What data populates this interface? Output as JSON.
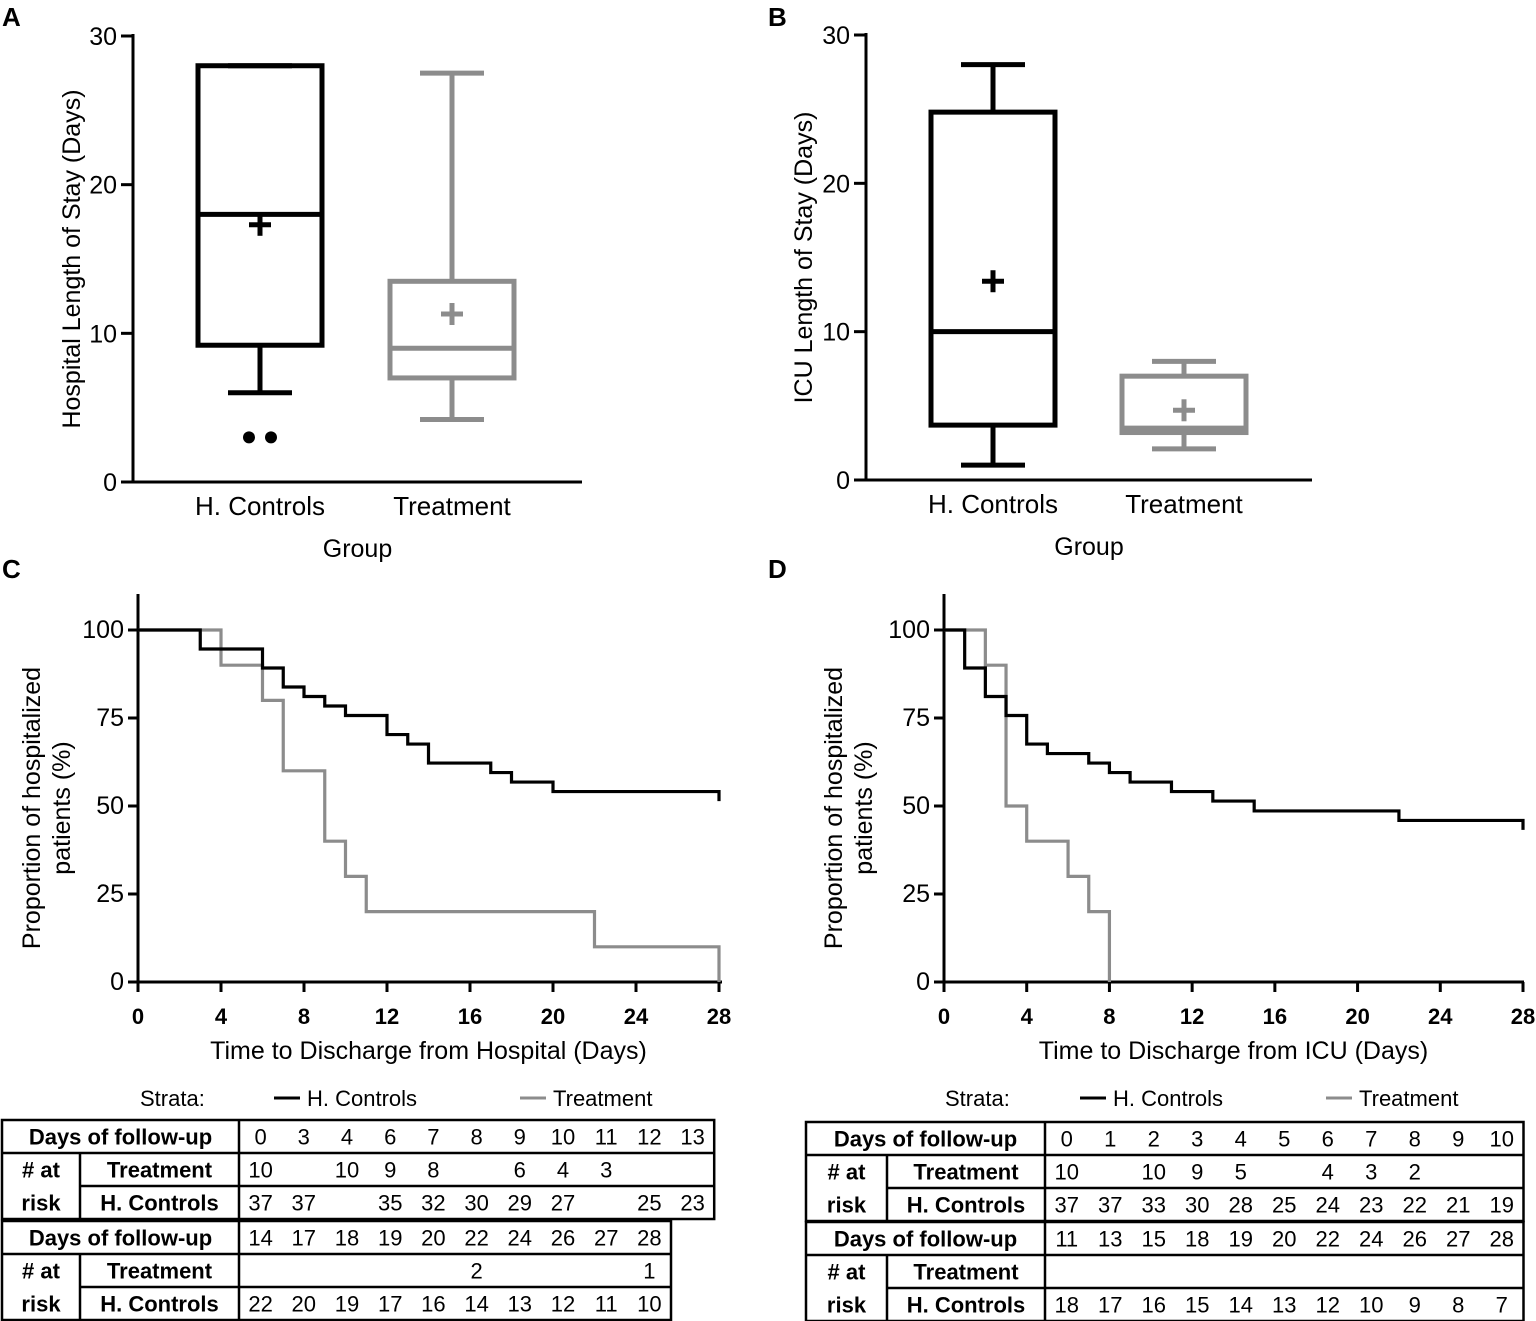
{
  "colors": {
    "controls": "#000000",
    "treatment": "#8c8c8c"
  },
  "chart_data": [
    {
      "panel": "A",
      "type": "box",
      "xlabel": "Group",
      "ylabel": "Hospital Length of Stay (Days)",
      "ylim": [
        0,
        30
      ],
      "yticks": [
        0,
        10,
        20,
        30
      ],
      "categories": [
        "H. Controls",
        "Treatment"
      ],
      "boxes": [
        {
          "name": "H. Controls",
          "whisker_low": 6,
          "q1": 9.2,
          "median": 18,
          "q3": 28,
          "whisker_high": 28,
          "mean": 17.3,
          "outliers": [
            3,
            3
          ]
        },
        {
          "name": "Treatment",
          "whisker_low": 4.2,
          "q1": 7,
          "median": 9,
          "q3": 13.5,
          "whisker_high": 27.5,
          "mean": 11.3,
          "outliers": []
        }
      ]
    },
    {
      "panel": "B",
      "type": "box",
      "xlabel": "Group",
      "ylabel": "ICU Length of Stay (Days)",
      "ylim": [
        0,
        30
      ],
      "yticks": [
        0,
        10,
        20,
        30
      ],
      "categories": [
        "H. Controls",
        "Treatment"
      ],
      "boxes": [
        {
          "name": "H. Controls",
          "whisker_low": 1,
          "q1": 3.7,
          "median": 10,
          "q3": 24.8,
          "whisker_high": 28,
          "mean": 13.4,
          "outliers": []
        },
        {
          "name": "Treatment",
          "whisker_low": 2.1,
          "q1": 3.2,
          "median": 3.5,
          "q3": 7,
          "whisker_high": 8,
          "mean": 4.7,
          "outliers": []
        }
      ]
    },
    {
      "panel": "C",
      "type": "line",
      "subtype": "step",
      "xlabel": "Time to Discharge from Hospital (Days)",
      "ylabel": "Proportion of hospitalized patients (%)",
      "ylabel_lines": [
        "Proportion of hospitalized",
        "patients (%)"
      ],
      "xlim": [
        0,
        28
      ],
      "ylim": [
        0,
        100
      ],
      "xticks": [
        0,
        4,
        8,
        12,
        16,
        20,
        24,
        28
      ],
      "yticks": [
        0,
        25,
        50,
        75,
        100
      ],
      "series": [
        {
          "name": "H. Controls",
          "x": [
            0,
            3,
            6,
            7,
            8,
            9,
            10,
            12,
            13,
            14,
            17,
            18,
            20,
            28
          ],
          "y": [
            100,
            94.6,
            89.2,
            83.8,
            81.1,
            78.4,
            75.7,
            70.3,
            67.6,
            62.2,
            59.5,
            56.8,
            54.1,
            51.4
          ]
        },
        {
          "name": "Treatment",
          "x": [
            0,
            4,
            6,
            7,
            9,
            10,
            11,
            22,
            28
          ],
          "y": [
            100,
            90,
            80,
            60,
            40,
            30,
            20,
            10,
            0
          ]
        }
      ]
    },
    {
      "panel": "D",
      "type": "line",
      "subtype": "step",
      "xlabel": "Time to Discharge from ICU (Days)",
      "ylabel": "Proportion of hospitalized patients (%)",
      "ylabel_lines": [
        "Proportion of hospitalized",
        "patients (%)"
      ],
      "xlim": [
        0,
        28
      ],
      "ylim": [
        0,
        100
      ],
      "xticks": [
        0,
        4,
        8,
        12,
        16,
        20,
        24,
        28
      ],
      "yticks": [
        0,
        25,
        50,
        75,
        100
      ],
      "series": [
        {
          "name": "H. Controls",
          "x": [
            0,
            1,
            2,
            3,
            4,
            5,
            7,
            8,
            9,
            11,
            13,
            15,
            22,
            28
          ],
          "y": [
            100,
            89.2,
            81.1,
            75.7,
            67.6,
            64.9,
            62.2,
            59.5,
            56.8,
            54.1,
            51.4,
            48.6,
            45.9,
            43.2
          ]
        },
        {
          "name": "Treatment",
          "x": [
            0,
            2,
            3,
            4,
            6,
            7,
            8
          ],
          "y": [
            100,
            90,
            50,
            40,
            30,
            20,
            0
          ]
        }
      ]
    }
  ],
  "tables": [
    {
      "panel": "C",
      "strata_label": "Strata:",
      "legend": [
        "H. Controls",
        "Treatment"
      ],
      "header_label": "Days of follow-up",
      "risk_label": [
        "# at",
        "risk"
      ],
      "group_labels": [
        "Treatment",
        "H. Controls"
      ],
      "blocks": [
        {
          "days": [
            "0",
            "3",
            "4",
            "6",
            "7",
            "8",
            "9",
            "10",
            "11",
            "12",
            "13"
          ],
          "treatment": [
            "10",
            "",
            "10",
            "9",
            "8",
            "",
            "6",
            "4",
            "3",
            "",
            ""
          ],
          "controls": [
            "37",
            "37",
            "",
            "35",
            "32",
            "30",
            "29",
            "27",
            "",
            "25",
            "23"
          ]
        },
        {
          "days": [
            "14",
            "17",
            "18",
            "19",
            "20",
            "22",
            "24",
            "26",
            "27",
            "28"
          ],
          "treatment": [
            "",
            "",
            "",
            "",
            "",
            "2",
            "",
            "",
            "",
            "1"
          ],
          "controls": [
            "22",
            "20",
            "19",
            "17",
            "16",
            "14",
            "13",
            "12",
            "11",
            "10"
          ]
        }
      ]
    },
    {
      "panel": "D",
      "strata_label": "Strata:",
      "legend": [
        "H. Controls",
        "Treatment"
      ],
      "header_label": "Days of follow-up",
      "risk_label": [
        "# at",
        "risk"
      ],
      "group_labels": [
        "Treatment",
        "H. Controls"
      ],
      "blocks": [
        {
          "days": [
            "0",
            "1",
            "2",
            "3",
            "4",
            "5",
            "6",
            "7",
            "8",
            "9",
            "10"
          ],
          "treatment": [
            "10",
            "",
            "10",
            "9",
            "5",
            "",
            "4",
            "3",
            "2",
            "",
            ""
          ],
          "controls": [
            "37",
            "37",
            "33",
            "30",
            "28",
            "25",
            "24",
            "23",
            "22",
            "21",
            "19"
          ]
        },
        {
          "days": [
            "11",
            "13",
            "15",
            "18",
            "19",
            "20",
            "22",
            "24",
            "26",
            "27",
            "28"
          ],
          "treatment": [
            "",
            "",
            "",
            "",
            "",
            "",
            "",
            "",
            "",
            "",
            ""
          ],
          "controls": [
            "18",
            "17",
            "16",
            "15",
            "14",
            "13",
            "12",
            "10",
            "9",
            "8",
            "7"
          ]
        }
      ]
    }
  ]
}
